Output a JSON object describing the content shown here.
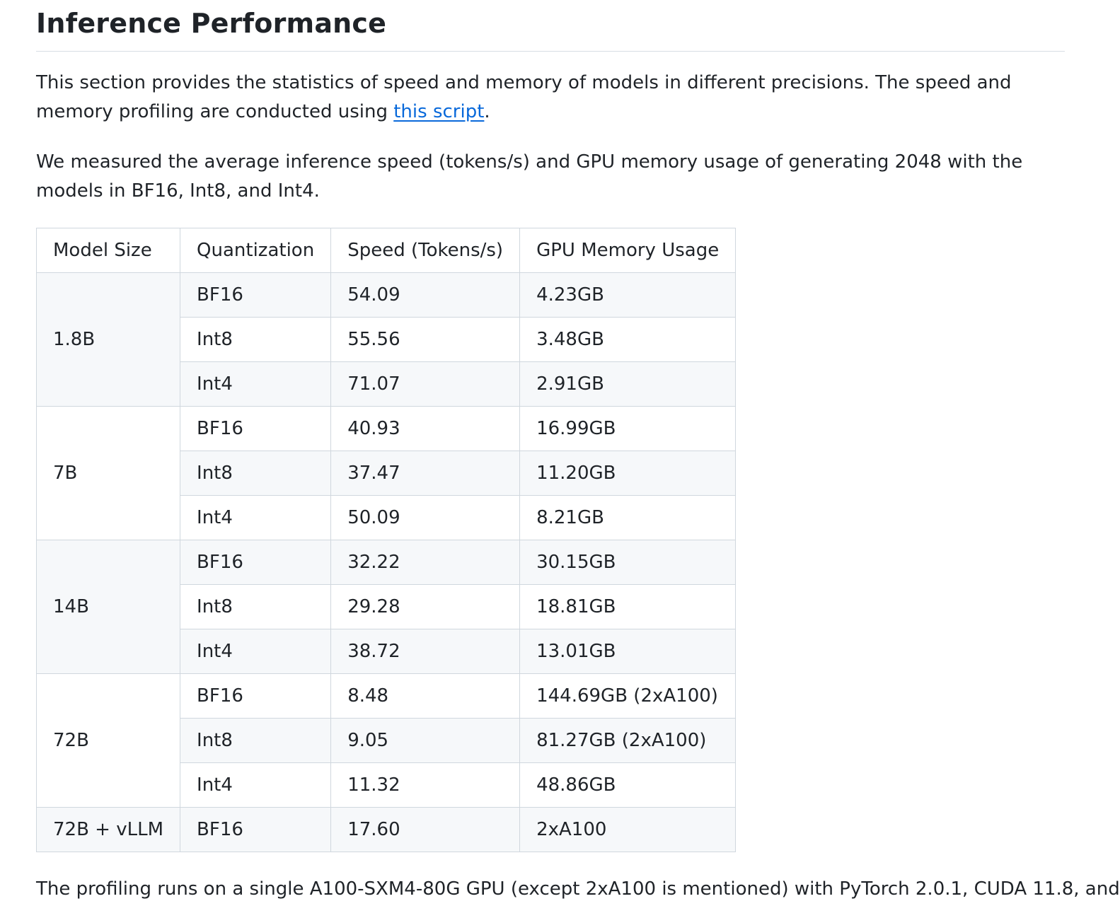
{
  "heading": "Inference Performance",
  "intro": {
    "before_link": "This section provides the statistics of speed and memory of models in different precisions. The speed and memory profiling are conducted using ",
    "link_text": "this script",
    "after_link": "."
  },
  "measure_text": "We measured the average inference speed (tokens/s) and GPU memory usage of generating 2048 with the models in BF16, Int8, and Int4.",
  "table": {
    "headers": [
      "Model Size",
      "Quantization",
      "Speed (Tokens/s)",
      "GPU Memory Usage"
    ],
    "groups": [
      {
        "model": "1.8B",
        "rows": [
          {
            "quant": "BF16",
            "speed": "54.09",
            "memory": "4.23GB"
          },
          {
            "quant": "Int8",
            "speed": "55.56",
            "memory": "3.48GB"
          },
          {
            "quant": "Int4",
            "speed": "71.07",
            "memory": "2.91GB"
          }
        ]
      },
      {
        "model": "7B",
        "rows": [
          {
            "quant": "BF16",
            "speed": "40.93",
            "memory": "16.99GB"
          },
          {
            "quant": "Int8",
            "speed": "37.47",
            "memory": "11.20GB"
          },
          {
            "quant": "Int4",
            "speed": "50.09",
            "memory": "8.21GB"
          }
        ]
      },
      {
        "model": "14B",
        "rows": [
          {
            "quant": "BF16",
            "speed": "32.22",
            "memory": "30.15GB"
          },
          {
            "quant": "Int8",
            "speed": "29.28",
            "memory": "18.81GB"
          },
          {
            "quant": "Int4",
            "speed": "38.72",
            "memory": "13.01GB"
          }
        ]
      },
      {
        "model": "72B",
        "rows": [
          {
            "quant": "BF16",
            "speed": "8.48",
            "memory": "144.69GB (2xA100)"
          },
          {
            "quant": "Int8",
            "speed": "9.05",
            "memory": "81.27GB (2xA100)"
          },
          {
            "quant": "Int4",
            "speed": "11.32",
            "memory": "48.86GB"
          }
        ]
      },
      {
        "model": "72B + vLLM",
        "rows": [
          {
            "quant": "BF16",
            "speed": "17.60",
            "memory": "2xA100"
          }
        ]
      }
    ]
  },
  "footer_text": "The profiling runs on a single A100-SXM4-80G GPU (except 2xA100 is mentioned) with PyTorch 2.0.1, CUDA 11.8, and"
}
